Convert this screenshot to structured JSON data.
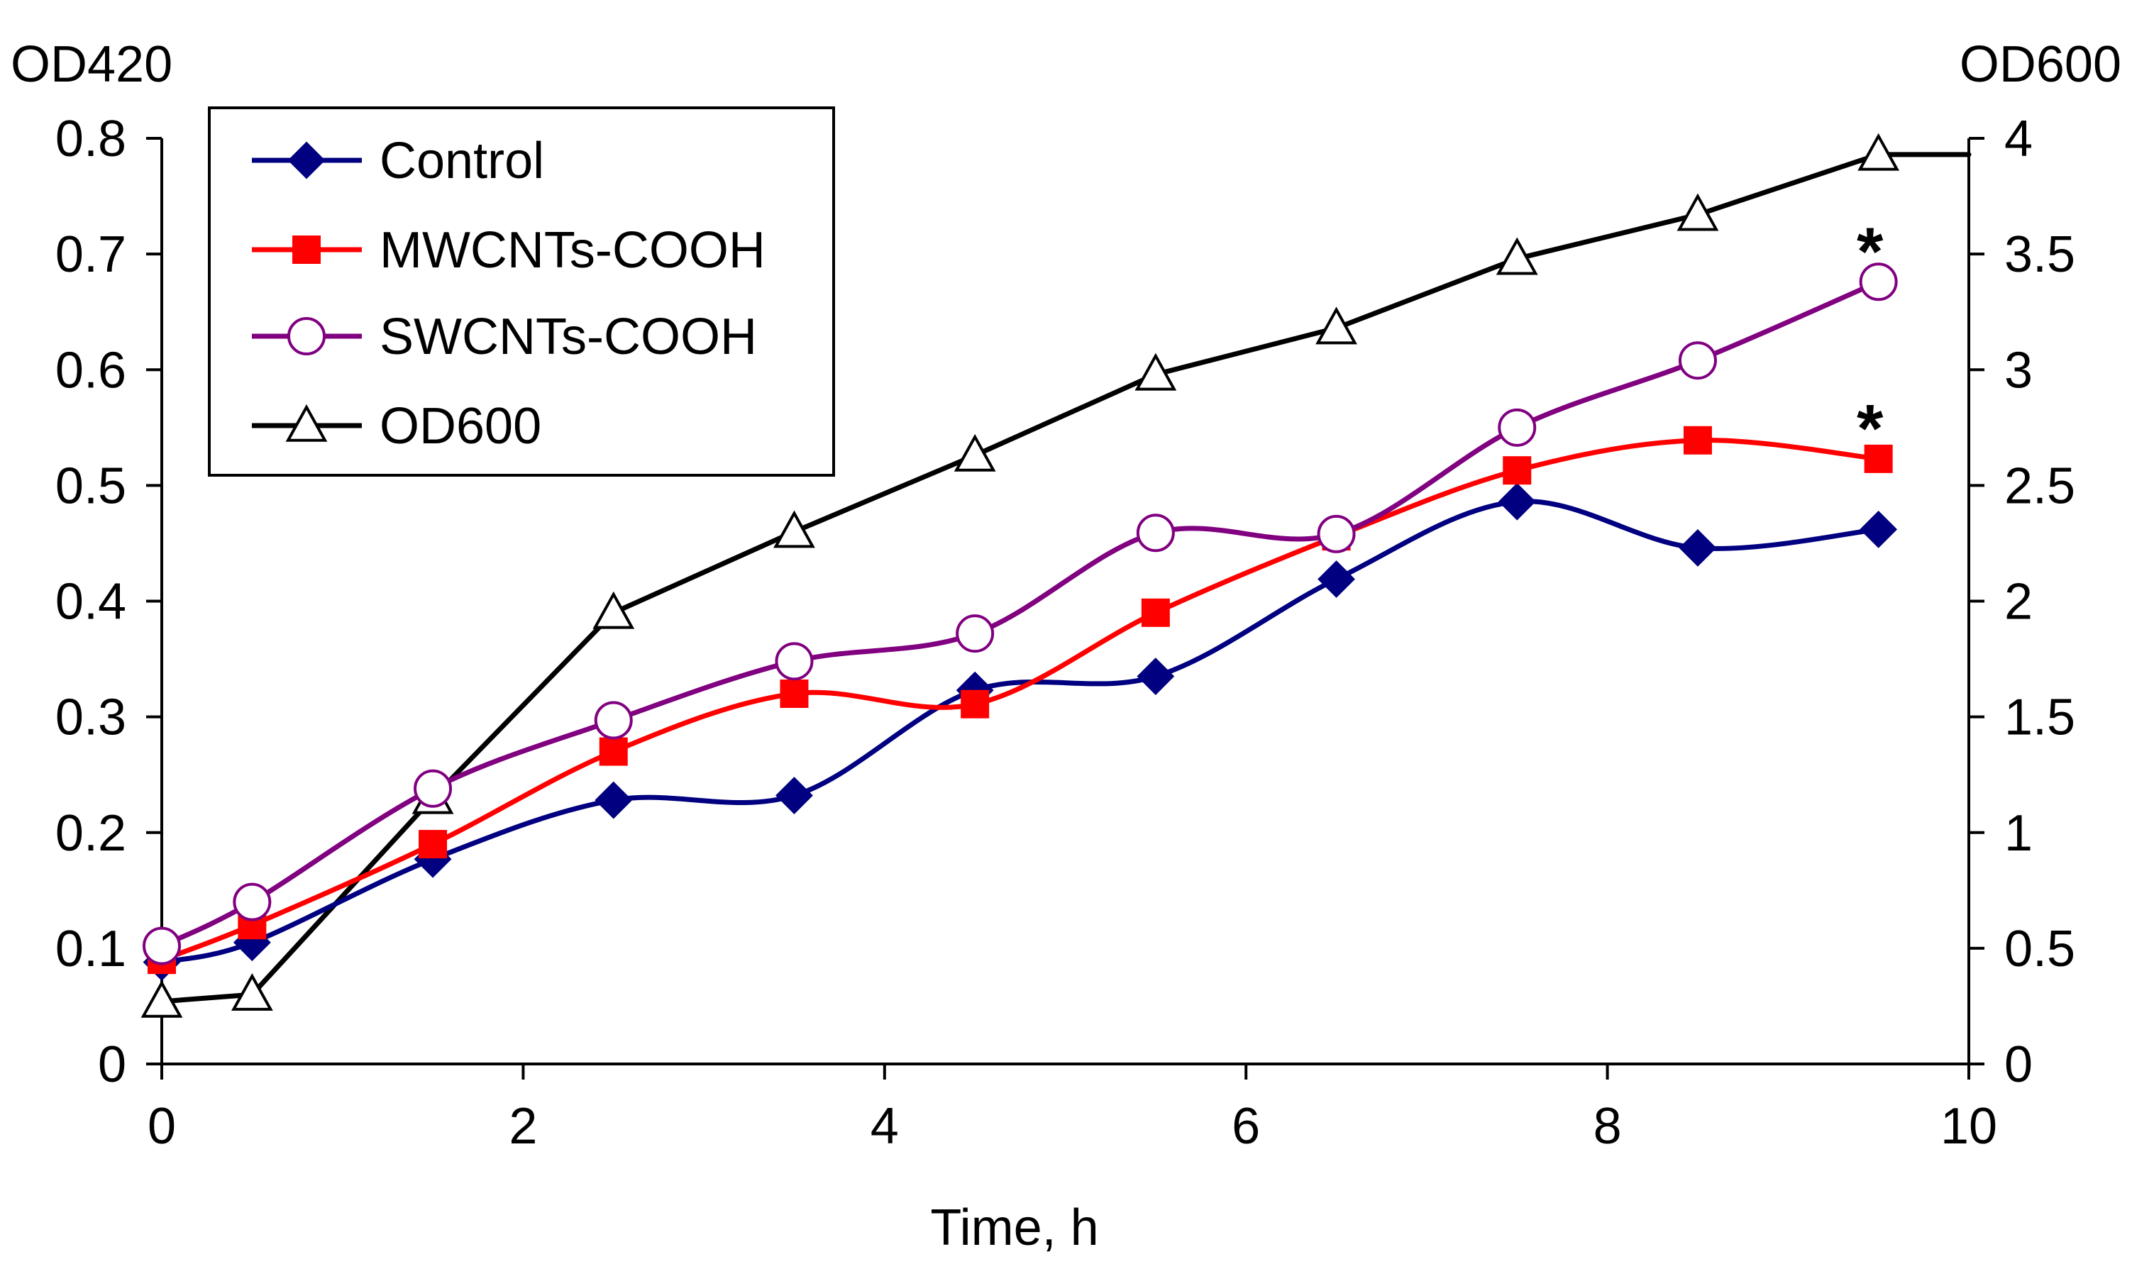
{
  "chart_data": {
    "type": "line",
    "title": "",
    "xlabel": "Time, h",
    "ylabel_left": "OD420",
    "ylabel_right": "OD600",
    "xlim": [
      0,
      10
    ],
    "ylim_left": [
      0,
      0.8
    ],
    "ylim_right": [
      0,
      4
    ],
    "x_ticks": [
      0,
      2,
      4,
      6,
      8,
      10
    ],
    "x_tick_labels": [
      "0",
      "2",
      "4",
      "6",
      "8",
      "10"
    ],
    "y_left_ticks": [
      0,
      0.1,
      0.2,
      0.3,
      0.4,
      0.5,
      0.6,
      0.7,
      0.8
    ],
    "y_left_tick_labels": [
      "0",
      "0.1",
      "0.2",
      "0.3",
      "0.4",
      "0.5",
      "0.6",
      "0.7",
      "0.8"
    ],
    "y_right_ticks": [
      0,
      0.5,
      1,
      1.5,
      2,
      2.5,
      3,
      3.5,
      4
    ],
    "y_right_tick_labels": [
      "0",
      "0.5",
      "1",
      "1.5",
      "2",
      "2.5",
      "3",
      "3.5",
      "4"
    ],
    "grid": false,
    "legend_position": "top-left",
    "series": [
      {
        "name": "Control",
        "axis": "left",
        "color": "#000080",
        "marker": "diamond-filled",
        "x": [
          0,
          0.5,
          1.5,
          2.5,
          3.5,
          4.5,
          5.5,
          6.5,
          7.5,
          8.5,
          9.5
        ],
        "values": [
          0.088,
          0.105,
          0.177,
          0.228,
          0.232,
          0.323,
          0.335,
          0.419,
          0.486,
          0.446,
          0.462
        ]
      },
      {
        "name": "MWCNTs-COOH",
        "axis": "left",
        "color": "#ff0000",
        "marker": "square-filled",
        "x": [
          0,
          0.5,
          1.5,
          2.5,
          3.5,
          4.5,
          5.5,
          6.5,
          7.5,
          8.5,
          9.5
        ],
        "values": [
          0.09,
          0.12,
          0.19,
          0.27,
          0.32,
          0.311,
          0.39,
          0.456,
          0.513,
          0.539,
          0.523
        ]
      },
      {
        "name": "SWCNTs-COOH",
        "axis": "left",
        "color": "#800080",
        "marker": "circle-open",
        "x": [
          0,
          0.5,
          1.5,
          2.5,
          3.5,
          4.5,
          5.5,
          6.5,
          7.5,
          8.5,
          9.5
        ],
        "values": [
          0.102,
          0.14,
          0.238,
          0.297,
          0.348,
          0.372,
          0.459,
          0.458,
          0.55,
          0.608,
          0.676
        ]
      },
      {
        "name": "OD600",
        "axis": "right",
        "color": "#000000",
        "marker": "triangle-open",
        "x": [
          0,
          0.5,
          1.5,
          2.5,
          3.5,
          4.5,
          5.5,
          6.5,
          7.5,
          8.5,
          9.5,
          10
        ],
        "values": [
          0.27,
          0.3,
          1.15,
          1.95,
          2.3,
          2.63,
          2.98,
          3.18,
          3.48,
          3.67,
          3.93,
          3.93
        ]
      }
    ],
    "annotations": [
      {
        "text": "*",
        "series": "SWCNTs-COOH",
        "x": 9.5
      },
      {
        "text": "*",
        "series": "MWCNTs-COOH",
        "x": 9.5
      }
    ]
  }
}
